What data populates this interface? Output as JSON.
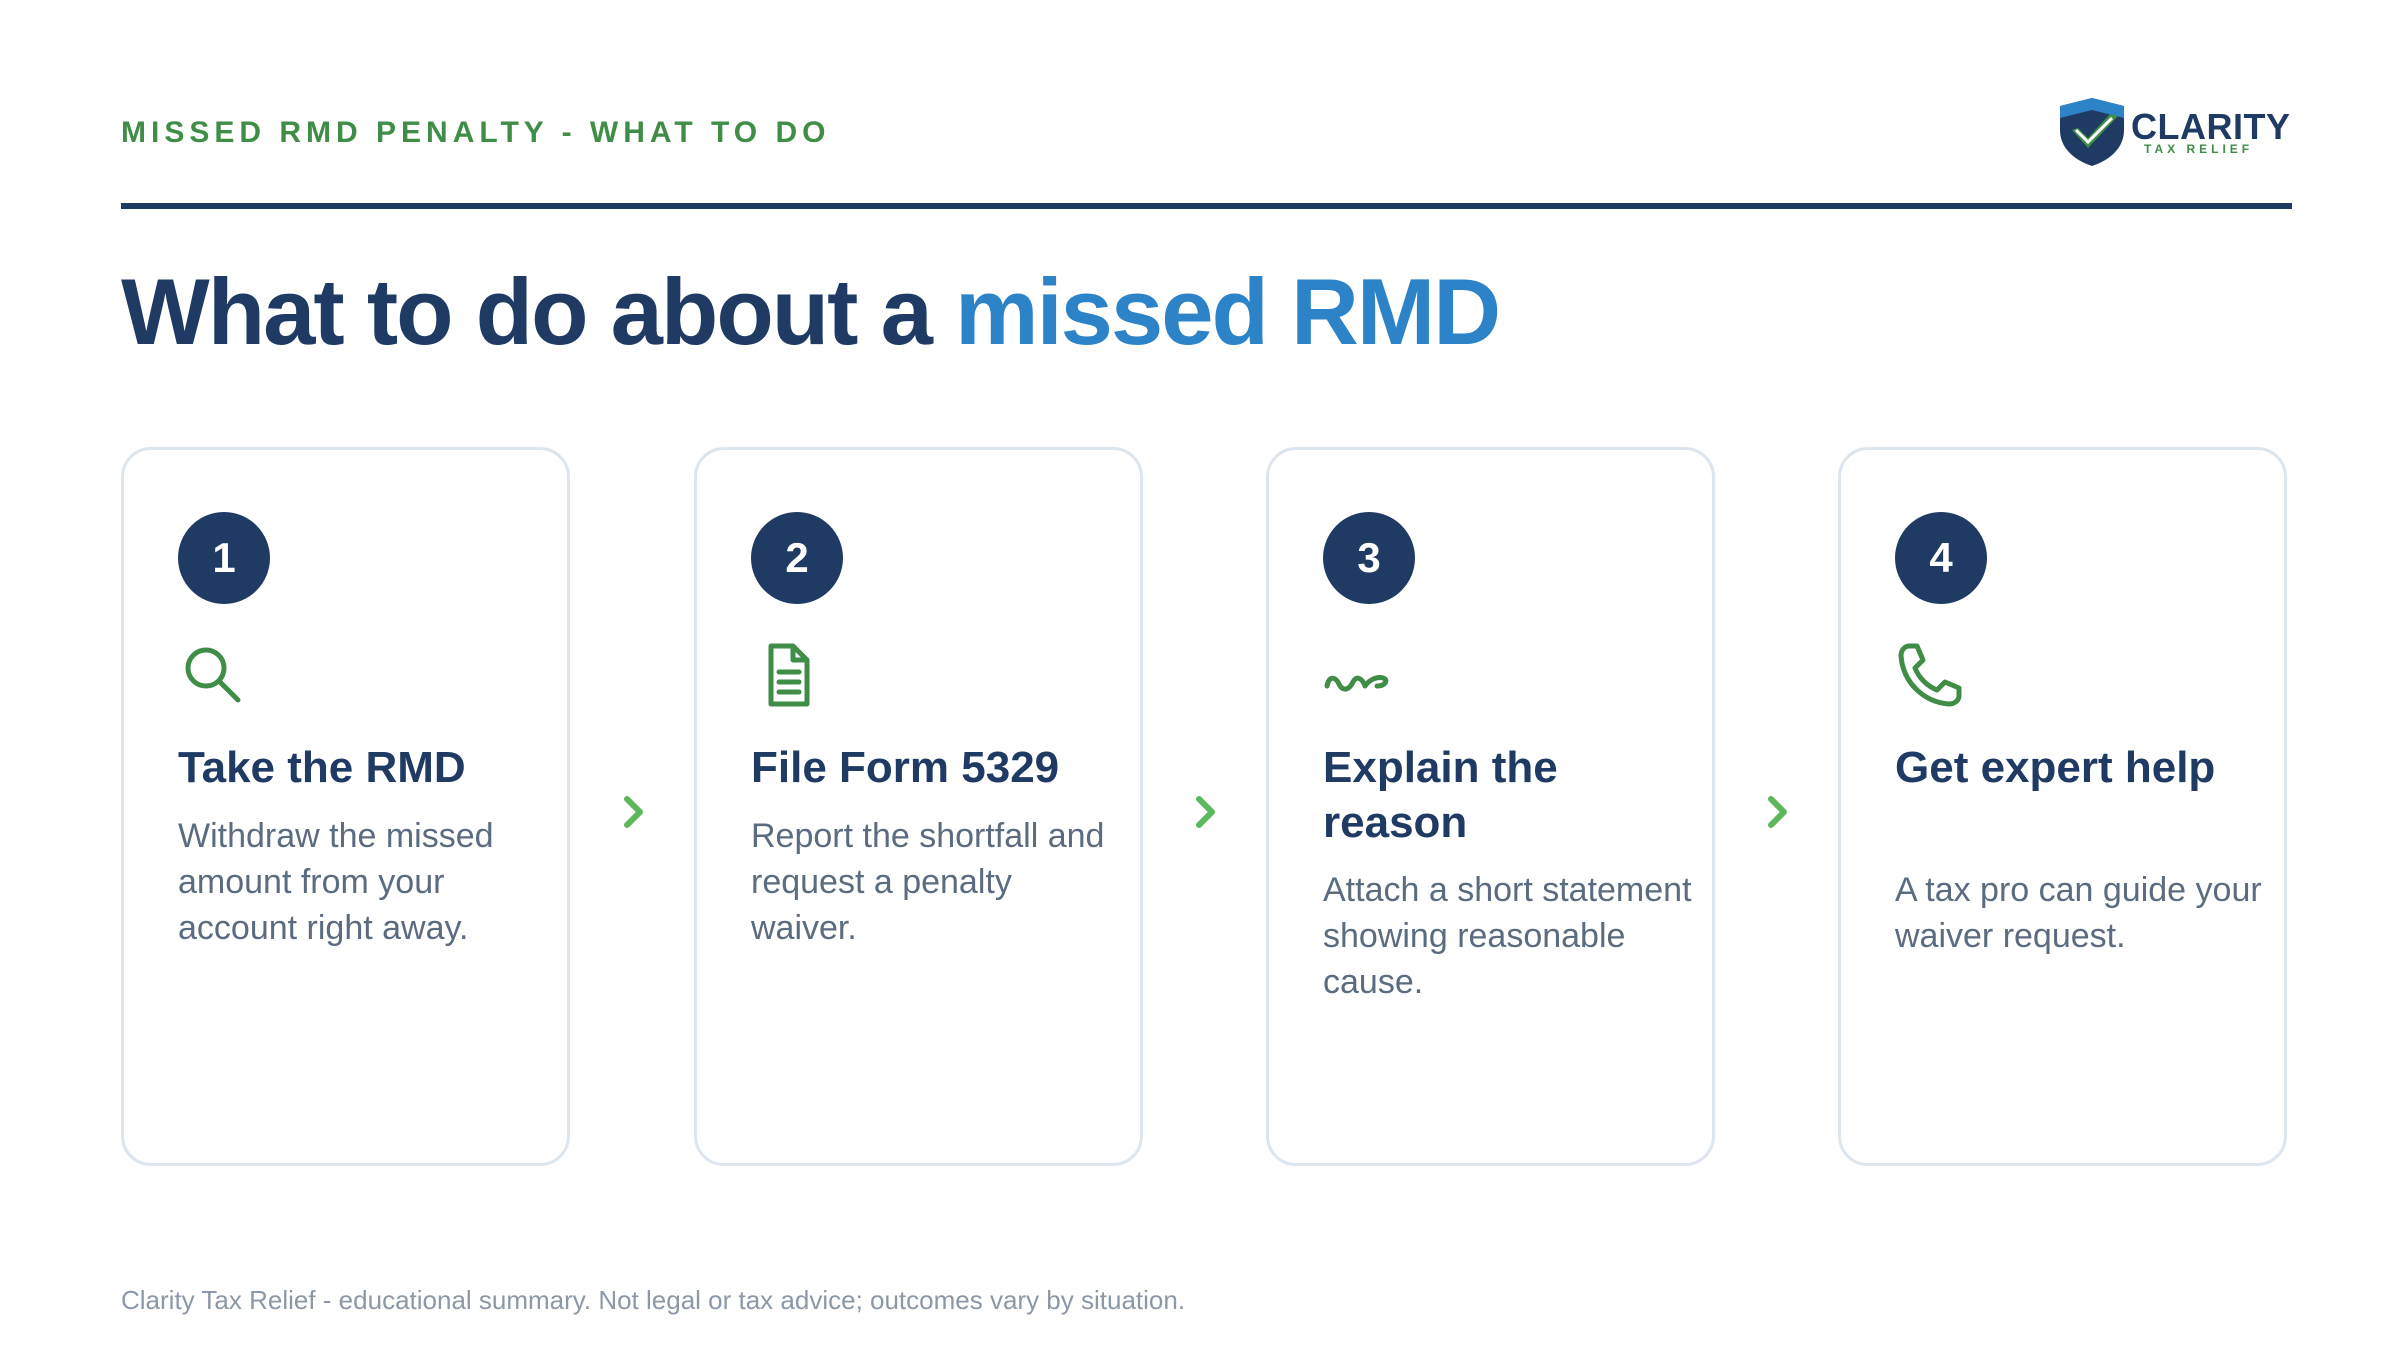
{
  "header": {
    "kicker": "MISSED RMD PENALTY - WHAT TO DO",
    "logo_brand": "CLARITY",
    "logo_sub": "TAX RELIEF"
  },
  "headline": {
    "main": "What to do about a ",
    "accent": "missed RMD"
  },
  "colors": {
    "navy": "#1f3a63",
    "accent_blue": "#2d83c8",
    "green": "#3f8d46",
    "arrow_green": "#5cb85c"
  },
  "steps": [
    {
      "number": "1",
      "icon": "search-icon",
      "title": "Take the RMD",
      "description": "Withdraw the missed amount from your account right away."
    },
    {
      "number": "2",
      "icon": "document-icon",
      "title": "File Form 5329",
      "description": "Report the shortfall and request a penalty waiver."
    },
    {
      "number": "3",
      "icon": "signature-icon",
      "title": "Explain the reason",
      "description": "Attach a short statement showing reasonable cause."
    },
    {
      "number": "4",
      "icon": "phone-icon",
      "title": "Get expert help",
      "description": "A tax pro can guide your waiver request."
    }
  ],
  "footer": "Clarity Tax Relief - educational summary. Not legal or tax advice; outcomes vary by situation."
}
